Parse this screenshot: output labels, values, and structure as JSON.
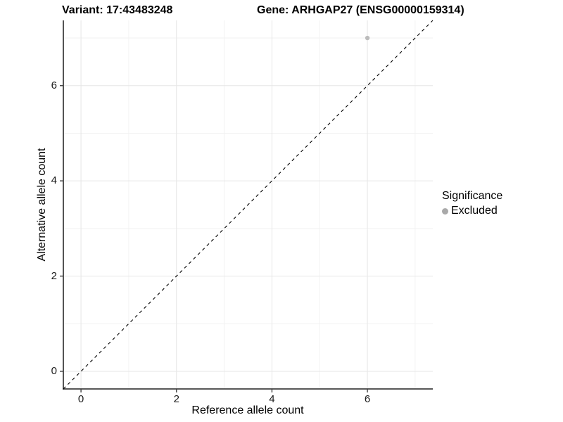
{
  "titles": {
    "variant": "Variant: 17:43483248",
    "gene": "Gene: ARHGAP27 (ENSG00000159314)"
  },
  "chart_data": {
    "type": "scatter",
    "title_left": "Variant: 17:43483248",
    "title_right": "Gene: ARHGAP27 (ENSG00000159314)",
    "xlabel": "Reference allele count",
    "ylabel": "Alternative allele count",
    "xlim": [
      -0.37,
      7.37
    ],
    "ylim": [
      -0.37,
      7.37
    ],
    "x_major_ticks": [
      0,
      2,
      4,
      6
    ],
    "y_major_ticks": [
      0,
      2,
      4,
      6
    ],
    "x_minor_gridlines": [
      1,
      3,
      5,
      7
    ],
    "y_minor_gridlines": [
      1,
      3,
      5,
      7
    ],
    "grid": "on",
    "points": [
      {
        "x": 6,
        "y": 7,
        "series": "Excluded"
      }
    ],
    "abline": {
      "slope": 1,
      "intercept": 0,
      "linestyle": "dashed",
      "color": "#000000"
    },
    "legend": {
      "title": "Significance",
      "position": "right",
      "entries": [
        {
          "label": "Excluded",
          "color": "#a9a9a9"
        }
      ]
    },
    "colors": {
      "point": "#bcbcbc",
      "grid_major": "#e6e6e6",
      "grid_minor": "#f2f2f2",
      "axis": "#404040",
      "background": "#ffffff"
    }
  }
}
